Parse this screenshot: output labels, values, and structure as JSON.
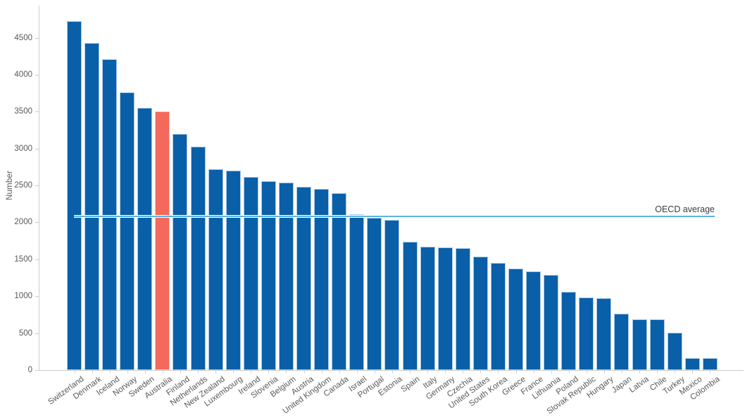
{
  "chart_data": {
    "type": "bar",
    "title": "",
    "ylabel": "Number",
    "xlabel": "",
    "grid": "off",
    "legend": "none",
    "ylim": [
      0,
      4750
    ],
    "yticks": [
      0,
      500,
      1000,
      1500,
      2000,
      2500,
      3000,
      3500,
      4000,
      4500
    ],
    "categories": [
      "Switzerland",
      "Denmark",
      "Iceland",
      "Norway",
      "Sweden",
      "Australia",
      "Finland",
      "Netherlands",
      "New Zealand",
      "Luxembourg",
      "Ireland",
      "Slovenia",
      "Belgium",
      "Austria",
      "United Kingdom",
      "Canada",
      "Israel",
      "Portugal",
      "Estonia",
      "Spain",
      "Italy",
      "Germany",
      "Czechia",
      "United States",
      "South Korea",
      "Greece",
      "France",
      "Lithuania",
      "Poland",
      "Slovak Republic",
      "Hungary",
      "Japan",
      "Latvia",
      "Chile",
      "Turkey",
      "Mexico",
      "Colombia"
    ],
    "values": [
      4725,
      4425,
      4205,
      3760,
      3550,
      3505,
      3200,
      3030,
      2725,
      2705,
      2620,
      2560,
      2535,
      2480,
      2455,
      2395,
      2110,
      2060,
      2035,
      1740,
      1670,
      1660,
      1650,
      1540,
      1455,
      1375,
      1335,
      1285,
      1060,
      985,
      970,
      765,
      690,
      685,
      505,
      165,
      160
    ],
    "highlight_category": "Australia",
    "highlight_index": 5,
    "reference_line": {
      "label": "OECD average",
      "value": 2080
    },
    "colors": {
      "bar": "#0a5fa9",
      "highlight_bar": "#f4695c",
      "reference_line": "#5ab5e6",
      "axis": "#cccccc",
      "tick_label": "#595959",
      "annotation": "#3c3c3c"
    }
  }
}
